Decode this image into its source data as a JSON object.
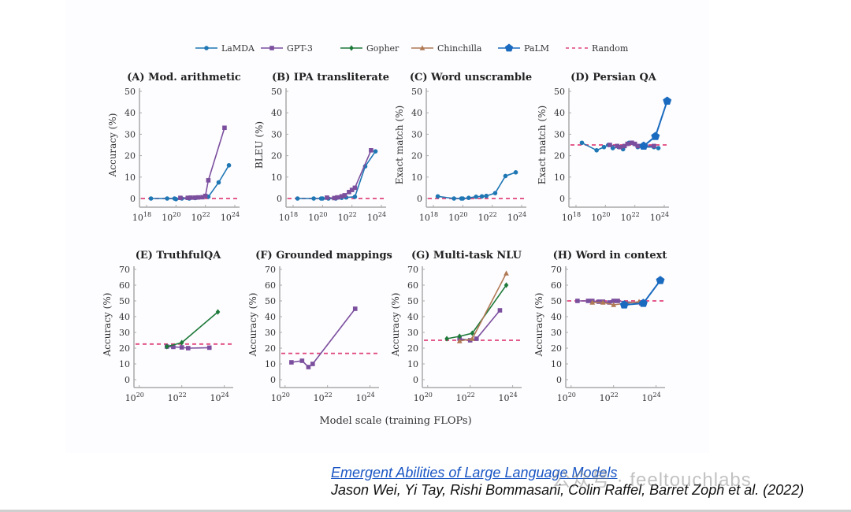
{
  "legend": [
    {
      "name": "LaMDA",
      "color": "#1f77b4",
      "marker": "circle"
    },
    {
      "name": "GPT-3",
      "color": "#7b4f9d",
      "marker": "square"
    },
    {
      "name": "Gopher",
      "color": "#1e7a3a",
      "marker": "diamond"
    },
    {
      "name": "Chinchilla",
      "color": "#b07a55",
      "marker": "triangle"
    },
    {
      "name": "PaLM",
      "color": "#1a6bbf",
      "marker": "pentagon"
    },
    {
      "name": "Random",
      "color": "#e0457b",
      "marker": "dashed"
    }
  ],
  "x_axis_title": "Model scale (training FLOPs)",
  "citation": {
    "title": "Emergent Abilities of Large Language Models",
    "authors": "Jason Wei, Yi Tay, Rishi Bommasani, Colin Raffel, Barret Zoph et al. (2022)"
  },
  "watermark": "公众号 · feeltouchlabs",
  "chart_data": [
    {
      "type": "line",
      "id": "A",
      "title": "(A) Mod. arithmetic",
      "ylabel": "Accuracy (%)",
      "xlim_log10": [
        18,
        24
      ],
      "ylim": [
        0,
        50
      ],
      "yticks": [
        0,
        10,
        20,
        30,
        40,
        50
      ],
      "xticks_log10": [
        18,
        20,
        22,
        24
      ],
      "random": 0,
      "series": [
        {
          "name": "LaMDA",
          "x_log10": [
            18.3,
            19.4,
            19.9,
            20.0,
            20.4,
            20.9,
            21.3,
            22.2,
            22.9,
            23.6
          ],
          "y": [
            0,
            0,
            0,
            -0.3,
            0,
            0,
            0.2,
            0.8,
            7.5,
            15.5
          ]
        },
        {
          "name": "GPT-3",
          "x_log10": [
            20.3,
            20.8,
            21.0,
            21.3,
            21.5,
            21.8,
            22.0,
            22.2,
            23.3
          ],
          "y": [
            0.3,
            0.3,
            0.4,
            0.4,
            0.5,
            0.6,
            1.2,
            8.5,
            33
          ]
        }
      ]
    },
    {
      "type": "line",
      "id": "B",
      "title": "(B) IPA transliterate",
      "ylabel": "BLEU (%)",
      "xlim_log10": [
        18,
        24
      ],
      "ylim": [
        0,
        50
      ],
      "yticks": [
        0,
        10,
        20,
        30,
        40,
        50
      ],
      "xticks_log10": [
        18,
        20,
        22,
        24
      ],
      "random": 0,
      "series": [
        {
          "name": "LaMDA",
          "x_log10": [
            18.3,
            19.4,
            19.9,
            20.0,
            20.4,
            20.9,
            21.3,
            21.6,
            22.2,
            22.9,
            23.6
          ],
          "y": [
            0,
            0,
            0,
            0,
            0,
            0,
            0.3,
            0.5,
            0.8,
            15,
            22
          ]
        },
        {
          "name": "GPT-3",
          "x_log10": [
            20.3,
            20.8,
            21.0,
            21.3,
            21.5,
            21.8,
            22.0,
            22.2,
            23.3
          ],
          "y": [
            0.4,
            0.2,
            0.5,
            1,
            1.5,
            3,
            4,
            5,
            22.5
          ]
        }
      ]
    },
    {
      "type": "line",
      "id": "C",
      "title": "(C) Word unscramble",
      "ylabel": "Exact match (%)",
      "xlim_log10": [
        18,
        24
      ],
      "ylim": [
        0,
        50
      ],
      "yticks": [
        0,
        10,
        20,
        30,
        40,
        50
      ],
      "xticks_log10": [
        18,
        20,
        22,
        24
      ],
      "random": 0,
      "series": [
        {
          "name": "LaMDA",
          "x_log10": [
            18.3,
            19.4,
            19.9,
            20.0,
            20.4,
            20.9,
            21.3,
            21.6,
            22.2,
            22.9,
            23.6
          ],
          "y": [
            1,
            0,
            0,
            0,
            0.3,
            0.8,
            1,
            1.2,
            2.5,
            10.5,
            12.2
          ]
        }
      ]
    },
    {
      "type": "line",
      "id": "D",
      "title": "(D) Persian QA",
      "ylabel": "Exact match (%)",
      "xlim_log10": [
        18,
        24
      ],
      "ylim": [
        0,
        50
      ],
      "yticks": [
        0,
        10,
        20,
        30,
        40,
        50
      ],
      "xticks_log10": [
        18,
        20,
        22,
        24
      ],
      "random": 25,
      "series": [
        {
          "name": "LaMDA",
          "x_log10": [
            18.4,
            19.4,
            19.9,
            20.2,
            20.5,
            20.9,
            21.2,
            21.6,
            22.2,
            22.5,
            23.3,
            23.6
          ],
          "y": [
            26,
            22.5,
            24,
            25,
            23.5,
            24,
            23,
            26,
            24,
            24,
            24,
            23.5
          ]
        },
        {
          "name": "GPT-3",
          "x_log10": [
            20.3,
            20.8,
            21.0,
            21.3,
            21.5,
            21.8,
            22.0,
            22.2,
            23.3
          ],
          "y": [
            25,
            24.5,
            24,
            24.5,
            25.5,
            26,
            25.5,
            24.5,
            24.5
          ]
        },
        {
          "name": "PaLM",
          "x_log10": [
            22.6,
            23.4,
            24.2
          ],
          "y": [
            24.5,
            29,
            45.5
          ]
        }
      ]
    },
    {
      "type": "line",
      "id": "E",
      "title": "(E) TruthfulQA",
      "ylabel": "Accuracy (%)",
      "xlim_log10": [
        19.6,
        24.2
      ],
      "ylim": [
        0,
        70
      ],
      "yticks": [
        0,
        10,
        20,
        30,
        40,
        50,
        60,
        70
      ],
      "xticks_log10": [
        20,
        22,
        24
      ],
      "random": 22.6,
      "series": [
        {
          "name": "GPT-3",
          "x_log10": [
            21.3,
            21.6,
            22.0,
            22.3,
            23.3
          ],
          "y": [
            21,
            20.8,
            20.5,
            20,
            20.3
          ]
        },
        {
          "name": "Gopher",
          "x_log10": [
            21.3,
            22.0,
            23.7
          ],
          "y": [
            21,
            23.5,
            43
          ]
        }
      ]
    },
    {
      "type": "line",
      "id": "F",
      "title": "(F) Grounded mappings",
      "ylabel": "Accuracy (%)",
      "xlim_log10": [
        19.6,
        24.2
      ],
      "ylim": [
        0,
        70
      ],
      "yticks": [
        0,
        10,
        20,
        30,
        40,
        50,
        60,
        70
      ],
      "xticks_log10": [
        20,
        22,
        24
      ],
      "random": 16.7,
      "series": [
        {
          "name": "GPT-3",
          "x_log10": [
            20.3,
            20.8,
            21.1,
            21.3,
            23.3
          ],
          "y": [
            11,
            12,
            8,
            10,
            45
          ]
        }
      ]
    },
    {
      "type": "line",
      "id": "G",
      "title": "(G) Multi-task NLU",
      "ylabel": "Accuracy (%)",
      "xlim_log10": [
        19.6,
        24.2
      ],
      "ylim": [
        0,
        70
      ],
      "yticks": [
        0,
        10,
        20,
        30,
        40,
        50,
        60,
        70
      ],
      "xticks_log10": [
        20,
        22,
        24
      ],
      "random": 25,
      "series": [
        {
          "name": "GPT-3",
          "x_log10": [
            21.5,
            22.0,
            22.3,
            23.4
          ],
          "y": [
            26,
            25,
            26,
            44
          ]
        },
        {
          "name": "Gopher",
          "x_log10": [
            20.9,
            21.5,
            22.1,
            23.7
          ],
          "y": [
            26,
            27.5,
            29.5,
            60
          ]
        },
        {
          "name": "Chinchilla",
          "x_log10": [
            21.5,
            22.1,
            23.7
          ],
          "y": [
            24.5,
            26,
            67.5
          ]
        }
      ]
    },
    {
      "type": "line",
      "id": "H",
      "title": "(H) Word in context",
      "ylabel": "Accuracy (%)",
      "xlim_log10": [
        19.6,
        24.2
      ],
      "ylim": [
        0,
        70
      ],
      "yticks": [
        0,
        10,
        20,
        30,
        40,
        50,
        60,
        70
      ],
      "xticks_log10": [
        20,
        22,
        24
      ],
      "random": 50,
      "series": [
        {
          "name": "GPT-3",
          "x_log10": [
            20.3,
            20.8,
            21.0,
            21.3,
            21.5,
            21.8,
            22.0,
            22.2,
            23.3
          ],
          "y": [
            50,
            50,
            50,
            49.5,
            49.5,
            49,
            50,
            50,
            48.5
          ]
        },
        {
          "name": "Chinchilla",
          "x_log10": [
            21.0,
            21.5,
            22.0,
            22.6,
            23.2
          ],
          "y": [
            49,
            49,
            47.5,
            48.5,
            49.5
          ]
        },
        {
          "name": "PaLM",
          "x_log10": [
            22.5,
            23.4,
            24.2
          ],
          "y": [
            47.5,
            48.5,
            63
          ]
        }
      ]
    }
  ]
}
